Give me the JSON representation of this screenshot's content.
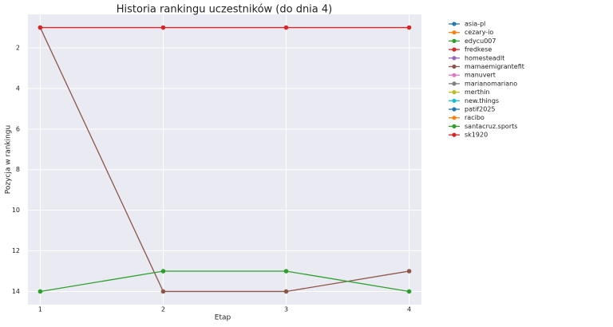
{
  "chart_data": {
    "type": "line",
    "title": "Historia rankingu uczestników (do dnia 4)",
    "xlabel": "Etap",
    "ylabel": "Pozycja w rankingu",
    "x": [
      1,
      2,
      3,
      4
    ],
    "xlim": [
      0.9,
      4.1
    ],
    "xticks": [
      1,
      2,
      3,
      4
    ],
    "ylim": [
      14.65,
      0.35
    ],
    "yticks": [
      2,
      4,
      6,
      8,
      10,
      12,
      14
    ],
    "inverted_y": true,
    "grid": true,
    "legend": "outside right",
    "series": [
      {
        "name": "asia-pl",
        "color": "#1f77b4",
        "values": [
          null,
          null,
          null,
          null
        ]
      },
      {
        "name": "cezary-io",
        "color": "#ff7f0e",
        "values": [
          null,
          null,
          null,
          null
        ]
      },
      {
        "name": "edycu007",
        "color": "#2ca02c",
        "values": [
          null,
          null,
          null,
          null
        ]
      },
      {
        "name": "fredkese",
        "color": "#d62728",
        "values": [
          null,
          null,
          null,
          null
        ]
      },
      {
        "name": "homesteadlt",
        "color": "#9467bd",
        "values": [
          null,
          null,
          null,
          null
        ]
      },
      {
        "name": "mamaemigrantefit",
        "color": "#8c564b",
        "values": [
          1,
          14,
          14,
          13
        ]
      },
      {
        "name": "manuvert",
        "color": "#e377c2",
        "values": [
          null,
          null,
          null,
          null
        ]
      },
      {
        "name": "marianomariano",
        "color": "#7f7f7f",
        "values": [
          null,
          null,
          null,
          null
        ]
      },
      {
        "name": "merthin",
        "color": "#bcbd22",
        "values": [
          null,
          null,
          null,
          null
        ]
      },
      {
        "name": "new.things",
        "color": "#17becf",
        "values": [
          null,
          null,
          null,
          null
        ]
      },
      {
        "name": "patif2025",
        "color": "#1f77b4",
        "values": [
          null,
          null,
          null,
          null
        ]
      },
      {
        "name": "racibo",
        "color": "#ff7f0e",
        "values": [
          null,
          null,
          null,
          null
        ]
      },
      {
        "name": "santacruz.sports",
        "color": "#2ca02c",
        "values": [
          14,
          13,
          13,
          14
        ]
      },
      {
        "name": "sk1920",
        "color": "#d62728",
        "values": [
          1,
          1,
          1,
          1
        ]
      }
    ]
  }
}
